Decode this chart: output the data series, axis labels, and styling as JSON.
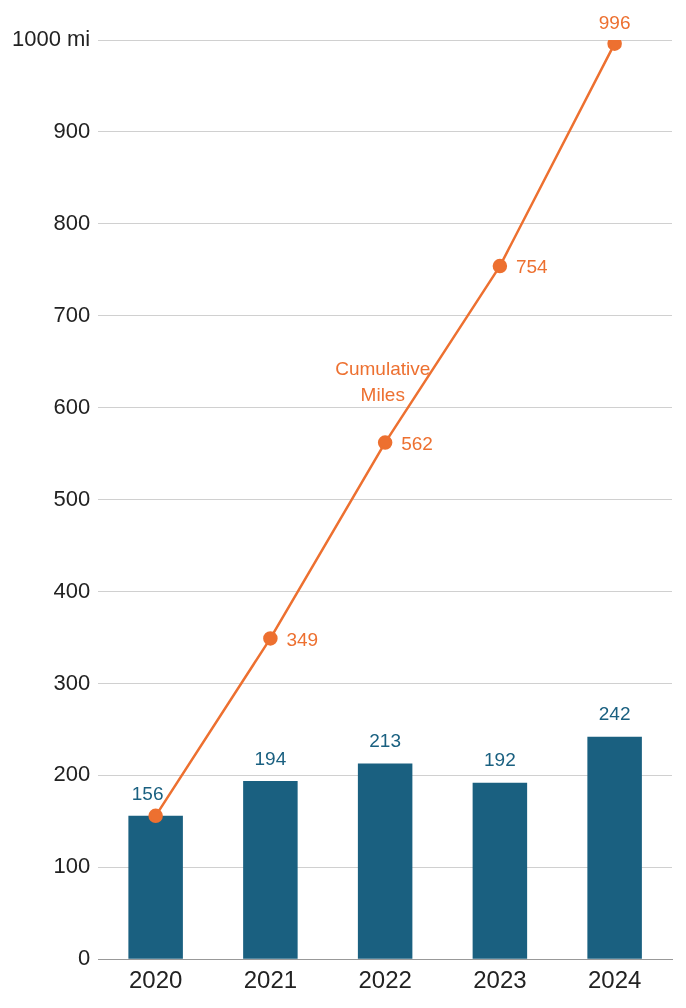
{
  "chart_data": {
    "type": "bar",
    "categories": [
      "2020",
      "2021",
      "2022",
      "2023",
      "2024"
    ],
    "series": [
      {
        "color": "#1a6080",
        "values": [
          156,
          194,
          213,
          192,
          242
        ],
        "value_labels": [
          "156",
          "194",
          "213",
          "192",
          "242"
        ]
      },
      {
        "type": "line",
        "name": "Cumulative Miles",
        "color": "#ed7030",
        "values": [
          156,
          349,
          562,
          754,
          996
        ],
        "value_labels": [
          null,
          "349",
          "562",
          "754",
          "996"
        ]
      }
    ],
    "ylim": [
      0,
      1000
    ],
    "yticks": [
      0,
      100,
      200,
      300,
      400,
      500,
      600,
      700,
      800,
      900,
      {
        "value": 1000,
        "label": "1000 mi"
      }
    ],
    "grid": "y",
    "legend": false,
    "marker": "circle",
    "line_style": "solid"
  }
}
